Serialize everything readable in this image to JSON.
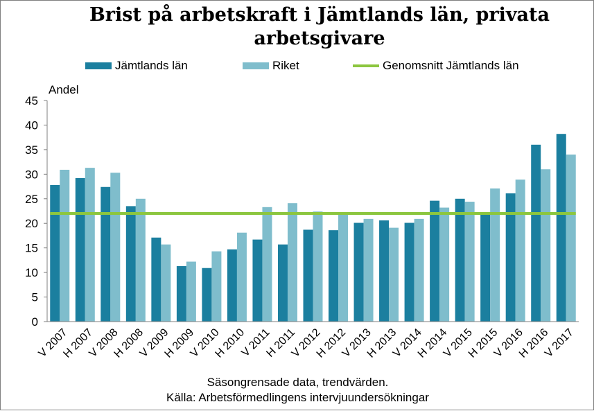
{
  "chart_data": {
    "type": "bar",
    "title": "Brist på arbetskraft i Jämtlands län, privata arbetsgivare",
    "ylabel": "Andel",
    "ylim": [
      0,
      45
    ],
    "yticks": [
      0,
      5,
      10,
      15,
      20,
      25,
      30,
      35,
      40,
      45
    ],
    "grid": false,
    "legend_position": "top",
    "categories": [
      "V 2007",
      "H 2007",
      "V 2008",
      "H 2008",
      "V 2009",
      "H 2009",
      "V 2010",
      "H 2010",
      "V 2011",
      "H 2011",
      "V 2012",
      "H 2012",
      "V 2013",
      "H 2013",
      "V 2014",
      "H 2014",
      "V 2015",
      "H 2015",
      "V 2016",
      "H 2016",
      "V 2017"
    ],
    "series": [
      {
        "name": "Jämtlands län",
        "color": "#1b7f9f",
        "values": [
          27.8,
          29.2,
          27.4,
          23.5,
          17.1,
          11.3,
          10.9,
          14.7,
          16.7,
          15.7,
          18.7,
          18.6,
          20.1,
          20.6,
          20.1,
          24.6,
          25.0,
          22.0,
          26.1,
          36.0,
          38.2
        ]
      },
      {
        "name": "Riket",
        "color": "#7fbdcc",
        "values": [
          30.9,
          31.3,
          30.3,
          25.0,
          15.7,
          12.2,
          14.3,
          18.1,
          23.3,
          24.1,
          22.4,
          22.0,
          20.9,
          19.1,
          20.9,
          23.2,
          24.4,
          27.1,
          28.9,
          31.0,
          34.0
        ]
      }
    ],
    "reference_line": {
      "name": "Genomsnitt Jämtlands län",
      "value": 22.0,
      "color": "#8cc63f"
    }
  },
  "footer": {
    "line1": "Säsongrensade data, trendvärden.",
    "line2": "Källa: Arbetsförmedlingens intervjuundersökningar"
  }
}
